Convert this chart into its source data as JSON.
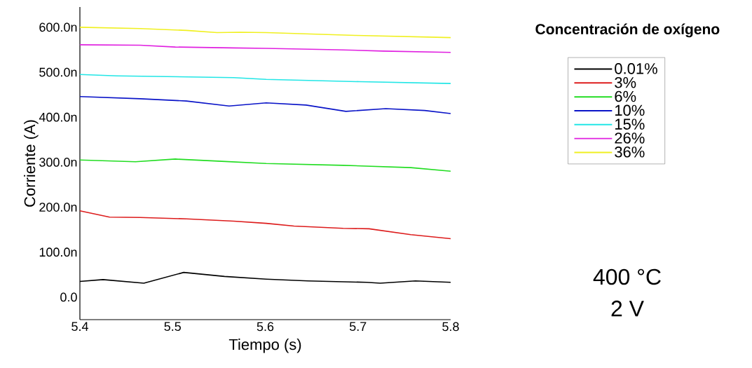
{
  "chart_data": {
    "type": "line",
    "xlabel": "Tiempo (s)",
    "ylabel": "Corriente (A)",
    "legend_title": "Concentración de oxígeno",
    "legend": "right",
    "annotations": [
      "400 °C",
      "2 V"
    ],
    "xlim": [
      5.4,
      5.8
    ],
    "ylim": [
      -50,
      645
    ],
    "xticks": [
      5.4,
      5.5,
      5.6,
      5.7,
      5.8
    ],
    "yticks": [
      {
        "value": 0,
        "label": "0.0"
      },
      {
        "value": 100,
        "label": "100.0n"
      },
      {
        "value": 200,
        "label": "200.0n"
      },
      {
        "value": 300,
        "label": "300.0n"
      },
      {
        "value": 400,
        "label": "400.0n"
      },
      {
        "value": 500,
        "label": "500.0n"
      },
      {
        "value": 600,
        "label": "600.0n"
      }
    ],
    "series": [
      {
        "name": "0.01%",
        "color": "#000000",
        "x": [
          5.4,
          5.425,
          5.469,
          5.512,
          5.556,
          5.601,
          5.646,
          5.709,
          5.724,
          5.762,
          5.8
        ],
        "values": [
          35,
          39,
          31,
          55,
          46,
          40,
          36,
          33,
          31,
          36,
          33
        ]
      },
      {
        "name": "3%",
        "color": "#dd1c1c",
        "x": [
          5.4,
          5.432,
          5.465,
          5.515,
          5.566,
          5.601,
          5.631,
          5.684,
          5.712,
          5.757,
          5.8
        ],
        "values": [
          192,
          178,
          177,
          174,
          169,
          164,
          158,
          153,
          152,
          139,
          130
        ]
      },
      {
        "name": "6%",
        "color": "#22dd22",
        "x": [
          5.4,
          5.46,
          5.503,
          5.553,
          5.601,
          5.684,
          5.757,
          5.8
        ],
        "values": [
          305,
          301,
          307,
          302,
          297,
          293,
          288,
          280
        ]
      },
      {
        "name": "10%",
        "color": "#0a14c8",
        "x": [
          5.4,
          5.465,
          5.515,
          5.561,
          5.601,
          5.644,
          5.687,
          5.73,
          5.772,
          5.8
        ],
        "values": [
          446,
          441,
          436,
          425,
          432,
          427,
          413,
          419,
          415,
          408
        ]
      },
      {
        "name": "15%",
        "color": "#22e6e6",
        "x": [
          5.4,
          5.44,
          5.566,
          5.601,
          5.702,
          5.8
        ],
        "values": [
          495,
          492,
          488,
          484,
          479,
          475
        ]
      },
      {
        "name": "26%",
        "color": "#e020e0",
        "x": [
          5.4,
          5.465,
          5.503,
          5.566,
          5.601,
          5.677,
          5.727,
          5.8
        ],
        "values": [
          561,
          560,
          556,
          554,
          553,
          550,
          547,
          544
        ]
      },
      {
        "name": "36%",
        "color": "#f0f020",
        "x": [
          5.4,
          5.465,
          5.515,
          5.548,
          5.573,
          5.601,
          5.697,
          5.8
        ],
        "values": [
          600,
          597,
          593,
          588,
          589,
          588,
          582,
          577
        ]
      }
    ]
  }
}
